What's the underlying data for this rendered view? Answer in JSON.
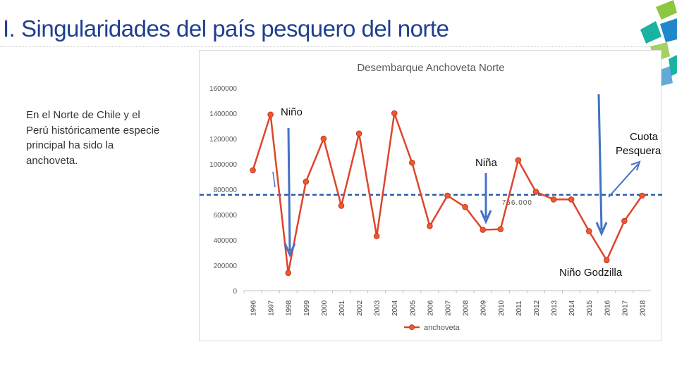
{
  "slide": {
    "title": "I. Singularidades del país pesquero del norte",
    "body_text": "En el Norte de Chile y el Perú históricamente especie principal ha sido la anchoveta."
  },
  "colors": {
    "title": "#1f3f8f",
    "series_line": "#e0442b",
    "series_marker_fill": "#f05a28",
    "reference_line": "#2e5eaa",
    "arrow": "#4472c4",
    "deco_green": "#8dc63f",
    "deco_teal": "#1ab2a0",
    "deco_blue": "#1f88c9"
  },
  "chart_data": {
    "type": "line",
    "title": "Desembarque Anchoveta Norte",
    "xlabel": "",
    "ylabel": "",
    "ylim": [
      0,
      1600000
    ],
    "yticks": [
      "0",
      "200000",
      "400000",
      "600000",
      "800000",
      "1000000",
      "1200000",
      "1400000",
      "1600000"
    ],
    "categories": [
      "1996",
      "1997",
      "1998",
      "1999",
      "2000",
      "2001",
      "2002",
      "2003",
      "2004",
      "2005",
      "2006",
      "2007",
      "2008",
      "2009",
      "2010",
      "2011",
      "2012",
      "2013",
      "2014",
      "2015",
      "2016",
      "2017",
      "2018"
    ],
    "series": [
      {
        "name": "anchoveta",
        "values": [
          950000,
          1390000,
          140000,
          860000,
          1200000,
          670000,
          1240000,
          430000,
          1400000,
          1010000,
          510000,
          750000,
          660000,
          480000,
          485000,
          1030000,
          780000,
          720000,
          720000,
          470000,
          240000,
          550000,
          750000
        ]
      }
    ],
    "reference_line": {
      "value": 756000,
      "label": "756.000"
    },
    "legend": {
      "position": "bottom",
      "label": "anchoveta"
    },
    "grid": false,
    "annotations": {
      "nino": "Niño",
      "nina": "Niña",
      "cuota_line1": "Cuota",
      "cuota_line2": "Pesquera",
      "nino_godzilla": "Niño Godzilla"
    }
  }
}
